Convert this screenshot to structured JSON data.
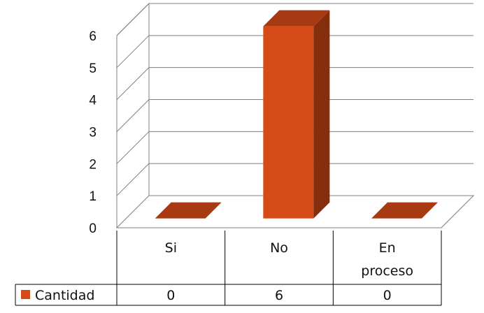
{
  "chart_data": {
    "type": "bar",
    "title": "",
    "xlabel": "",
    "ylabel": "",
    "categories": [
      "Si",
      "No",
      "En proceso"
    ],
    "category_lines": [
      [
        "Si"
      ],
      [
        "No"
      ],
      [
        "En",
        "proceso"
      ]
    ],
    "series": [
      {
        "name": "Cantidad",
        "values": [
          0,
          6,
          0
        ],
        "value_labels": [
          "0",
          "6",
          "0"
        ],
        "color": "#d64a17"
      }
    ],
    "ylim": [
      0,
      6
    ],
    "yticks": [
      "0",
      "1",
      "2",
      "3",
      "4",
      "5",
      "6"
    ],
    "grid": true,
    "style": "3d-column",
    "legend": "data-table"
  }
}
